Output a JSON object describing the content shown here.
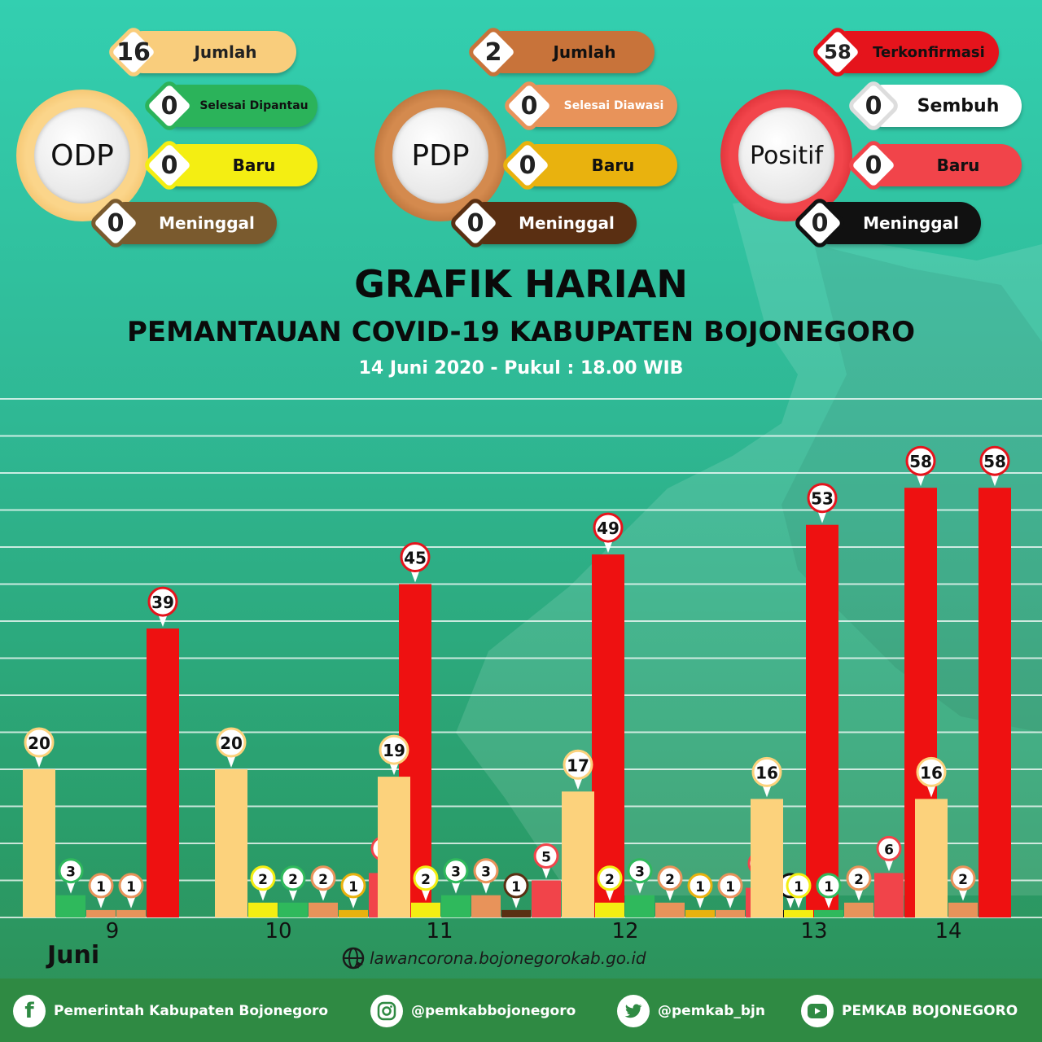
{
  "groups": [
    {
      "title": "ODP",
      "ring_color": "#f6c56b",
      "items": [
        {
          "value": "16",
          "label": "Jumlah",
          "color": "#f9cd7c",
          "border": "#f9cd7c",
          "text": "#222"
        },
        {
          "value": "0",
          "label": "Selesai Dipantau",
          "color": "#2bb35a",
          "border": "#2bb35a",
          "text": "#111"
        },
        {
          "value": "0",
          "label": "Baru",
          "color": "#f4ee12",
          "border": "#f4ee12",
          "text": "#111"
        },
        {
          "value": "0",
          "label": "Meninggal",
          "color": "#7a5a2e",
          "border": "#7a5a2e",
          "text": "#fff"
        }
      ]
    },
    {
      "title": "PDP",
      "ring_color": "#b86a2e",
      "items": [
        {
          "value": "2",
          "label": "Jumlah",
          "color": "#c8733a",
          "border": "#c8733a",
          "text": "#111"
        },
        {
          "value": "0",
          "label": "Selesai Diawasi",
          "color": "#e8935a",
          "border": "#e8935a",
          "text": "#fff"
        },
        {
          "value": "0",
          "label": "Baru",
          "color": "#e9b20e",
          "border": "#e9b20e",
          "text": "#111"
        },
        {
          "value": "0",
          "label": "Meninggal",
          "color": "#5a2f12",
          "border": "#5a2f12",
          "text": "#fff"
        }
      ]
    },
    {
      "title": "Positif",
      "ring_color": "#e5121d",
      "items": [
        {
          "value": "58",
          "label": "Terkonfirmasi",
          "color": "#e5141c",
          "border": "#e5141c",
          "text": "#111"
        },
        {
          "value": "0",
          "label": "Sembuh",
          "color": "#ffffff",
          "border": "#dddddd",
          "text": "#111"
        },
        {
          "value": "0",
          "label": "Baru",
          "color": "#f1444a",
          "border": "#f1444a",
          "text": "#111"
        },
        {
          "value": "0",
          "label": "Meninggal",
          "color": "#111111",
          "border": "#111111",
          "text": "#fff"
        }
      ]
    }
  ],
  "titles": {
    "main": "GRAFIK HARIAN",
    "sub": "PEMANTAUAN COVID-19 KABUPATEN BOJONEGORO",
    "date": "14 Juni 2020 - Pukul : 18.00 WIB"
  },
  "chart_data": {
    "type": "bar",
    "categories": [
      "9",
      "10",
      "11",
      "12",
      "13",
      "14"
    ],
    "xlabel": "Juni",
    "ylim": [
      0,
      70
    ],
    "grid": true,
    "series": [
      {
        "color": "#fcd27c",
        "values": [
          20,
          20,
          19,
          17,
          16,
          16
        ]
      },
      {
        "color": "#f4ee12",
        "values": [
          null,
          2,
          2,
          2,
          1,
          null
        ]
      },
      {
        "color": "#2fb95c",
        "values": [
          3,
          2,
          3,
          3,
          1,
          null
        ]
      },
      {
        "color": "#e8935a",
        "values": [
          1,
          2,
          3,
          2,
          2,
          2
        ]
      },
      {
        "color": "#e9b20e",
        "values": [
          null,
          1,
          null,
          1,
          null,
          null
        ]
      },
      {
        "color": "#5a2f12",
        "values": [
          null,
          null,
          1,
          null,
          null,
          null
        ]
      },
      {
        "color": "#e8935a",
        "values": [
          1,
          null,
          null,
          1,
          null,
          null
        ]
      },
      {
        "color": "#f1444a",
        "values": [
          null,
          6,
          5,
          4,
          6,
          null
        ]
      },
      {
        "color": "#ffffff",
        "values": [
          null,
          null,
          1,
          null,
          null,
          null
        ]
      },
      {
        "color": "#111111",
        "values": [
          null,
          null,
          null,
          1,
          null,
          null
        ]
      },
      {
        "color": "#ee1111",
        "values": [
          39,
          45,
          49,
          53,
          58,
          58
        ]
      }
    ]
  },
  "website": "lawancorona.bojonegorokab.go.id",
  "footer": {
    "facebook": "Pemerintah Kabupaten Bojonegoro",
    "instagram": "@pemkabbojonegoro",
    "twitter": "@pemkab_bjn",
    "youtube": "PEMKAB BOJONEGORO"
  }
}
